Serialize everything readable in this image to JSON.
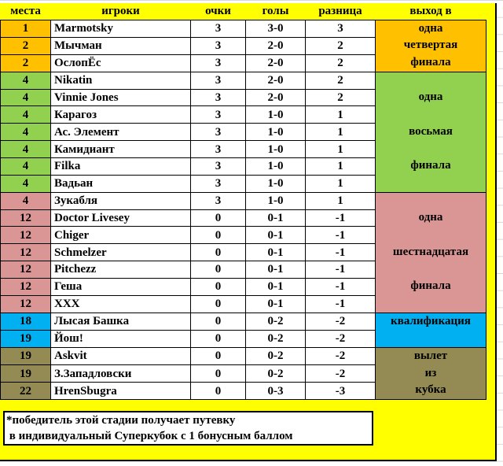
{
  "headers": [
    "места",
    "игроки",
    "очки",
    "голы",
    "разница",
    "выход в"
  ],
  "colors": {
    "orange": "#FFC000",
    "green": "#92D050",
    "pink": "#DA9694",
    "blue": "#00B0F0",
    "olive": "#948A54",
    "yellow": "#FFFF00"
  },
  "rows": [
    {
      "place": "1",
      "player": "Marmotsky",
      "points": "3",
      "goals": "3-0",
      "diff": "3",
      "color": "#FFC000"
    },
    {
      "place": "2",
      "player": "Мычман",
      "points": "3",
      "goals": "2-0",
      "diff": "2",
      "color": "#FFC000"
    },
    {
      "place": "2",
      "player": "ОслопЁс",
      "points": "3",
      "goals": "2-0",
      "diff": "2",
      "color": "#FFC000"
    },
    {
      "place": "4",
      "player": "Nikatin",
      "points": "3",
      "goals": "2-0",
      "diff": "2",
      "color": "#92D050"
    },
    {
      "place": "4",
      "player": "Vinnie Jones",
      "points": "3",
      "goals": "2-0",
      "diff": "2",
      "color": "#92D050"
    },
    {
      "place": "4",
      "player": "Карагоз",
      "points": "3",
      "goals": "1-0",
      "diff": "1",
      "color": "#92D050"
    },
    {
      "place": "4",
      "player": "Ас. Элемент",
      "points": "3",
      "goals": "1-0",
      "diff": "1",
      "color": "#92D050"
    },
    {
      "place": "4",
      "player": "Камидиант",
      "points": "3",
      "goals": "1-0",
      "diff": "1",
      "color": "#92D050"
    },
    {
      "place": "4",
      "player": "Filka",
      "points": "3",
      "goals": "1-0",
      "diff": "1",
      "color": "#92D050"
    },
    {
      "place": "4",
      "player": "Вадьан",
      "points": "3",
      "goals": "1-0",
      "diff": "1",
      "color": "#92D050"
    },
    {
      "place": "4",
      "player": "Зукабля",
      "points": "3",
      "goals": "1-0",
      "diff": "1",
      "color": "#DA9694"
    },
    {
      "place": "12",
      "player": "Doctor Livesey",
      "points": "0",
      "goals": "0-1",
      "diff": "-1",
      "color": "#DA9694"
    },
    {
      "place": "12",
      "player": "Chiger",
      "points": "0",
      "goals": "0-1",
      "diff": "-1",
      "color": "#DA9694"
    },
    {
      "place": "12",
      "player": "Schmelzer",
      "points": "0",
      "goals": "0-1",
      "diff": "-1",
      "color": "#DA9694"
    },
    {
      "place": "12",
      "player": "Pitchezz",
      "points": "0",
      "goals": "0-1",
      "diff": "-1",
      "color": "#DA9694"
    },
    {
      "place": "12",
      "player": "Геша",
      "points": "0",
      "goals": "0-1",
      "diff": "-1",
      "color": "#DA9694"
    },
    {
      "place": "12",
      "player": "XXX",
      "points": "0",
      "goals": "0-1",
      "diff": "-1",
      "color": "#DA9694"
    },
    {
      "place": "18",
      "player": "Лысая Башка",
      "points": "0",
      "goals": "0-2",
      "diff": "-2",
      "color": "#00B0F0"
    },
    {
      "place": "19",
      "player": "Йош!",
      "points": "0",
      "goals": "0-2",
      "diff": "-2",
      "color": "#00B0F0"
    },
    {
      "place": "19",
      "player": "Askvit",
      "points": "0",
      "goals": "0-2",
      "diff": "-2",
      "color": "#948A54"
    },
    {
      "place": "19",
      "player": "З.Западловски",
      "points": "0",
      "goals": "0-2",
      "diff": "-2",
      "color": "#948A54"
    },
    {
      "place": "22",
      "player": "HrenSbugra",
      "points": "0",
      "goals": "0-3",
      "diff": "-3",
      "color": "#948A54"
    }
  ],
  "groups": [
    {
      "span": 3,
      "color": "#FFC000",
      "lines": [
        "одна",
        "четвертая",
        "финала"
      ],
      "align": "space-evenly"
    },
    {
      "span": 7,
      "color": "#92D050",
      "lines": [
        "одна",
        "восьмая",
        "финала"
      ],
      "align": "space-evenly"
    },
    {
      "span": 7,
      "color": "#DA9694",
      "lines": [
        "одна",
        "шестнадцатая",
        "финала"
      ],
      "align": "space-evenly"
    },
    {
      "span": 2,
      "color": "#00B0F0",
      "lines": [
        "квалификация"
      ],
      "align": "flex-start"
    },
    {
      "span": 3,
      "color": "#948A54",
      "lines": [
        "вылет",
        "из",
        "кубка"
      ],
      "align": "space-evenly"
    }
  ],
  "note": {
    "line1": "*победитель этой стадии получает путевку",
    "line2": " в индивидуальный Суперкубок с 1 бонусным баллом"
  }
}
